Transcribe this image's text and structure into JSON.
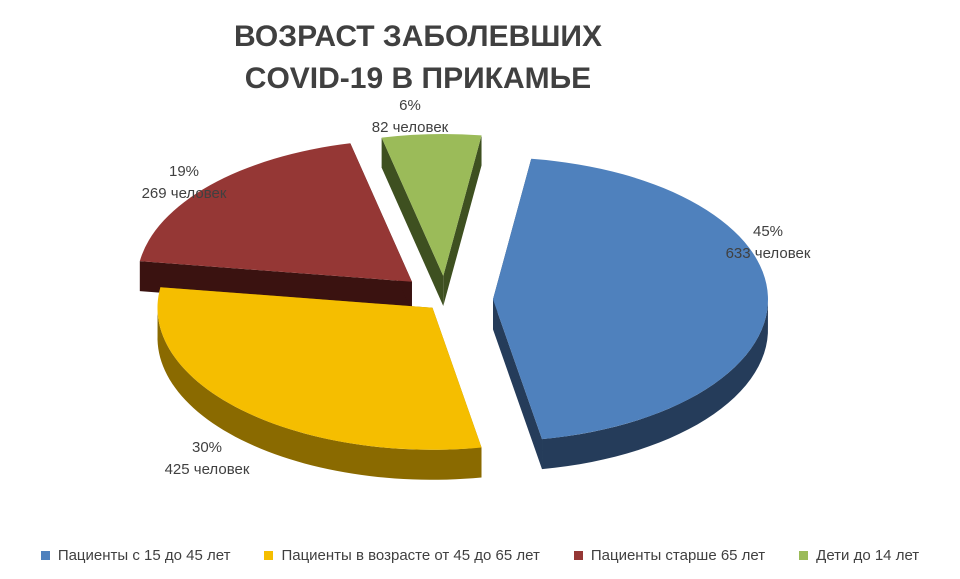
{
  "chart_data": {
    "type": "pie",
    "title": [
      "ВОЗРАСТ ЗАБОЛЕВШИХ",
      "COVID-19 В ПРИКАМЬЕ"
    ],
    "unit": "человек",
    "legend_position": "bottom",
    "slices": [
      {
        "name": "Пациенты с 15 до 45 лет",
        "value": 633,
        "percent": "45%",
        "count_label": "633 человек",
        "color": "#4F81BD",
        "side_color": "#253C5A"
      },
      {
        "name": "Пациенты в возрасте от 45 до 65 лет",
        "value": 425,
        "percent": "30%",
        "count_label": "425 человек",
        "color": "#F5BE00",
        "side_color": "#8A6A00"
      },
      {
        "name": "Пациенты старше 65 лет",
        "value": 269,
        "percent": "19%",
        "count_label": "269 человек",
        "color": "#953735",
        "side_color": "#3A1210"
      },
      {
        "name": "Дети до 14 лет",
        "value": 82,
        "percent": "6%",
        "count_label": "82 человек",
        "color": "#9BBB59",
        "side_color": "#3E5020"
      }
    ]
  }
}
